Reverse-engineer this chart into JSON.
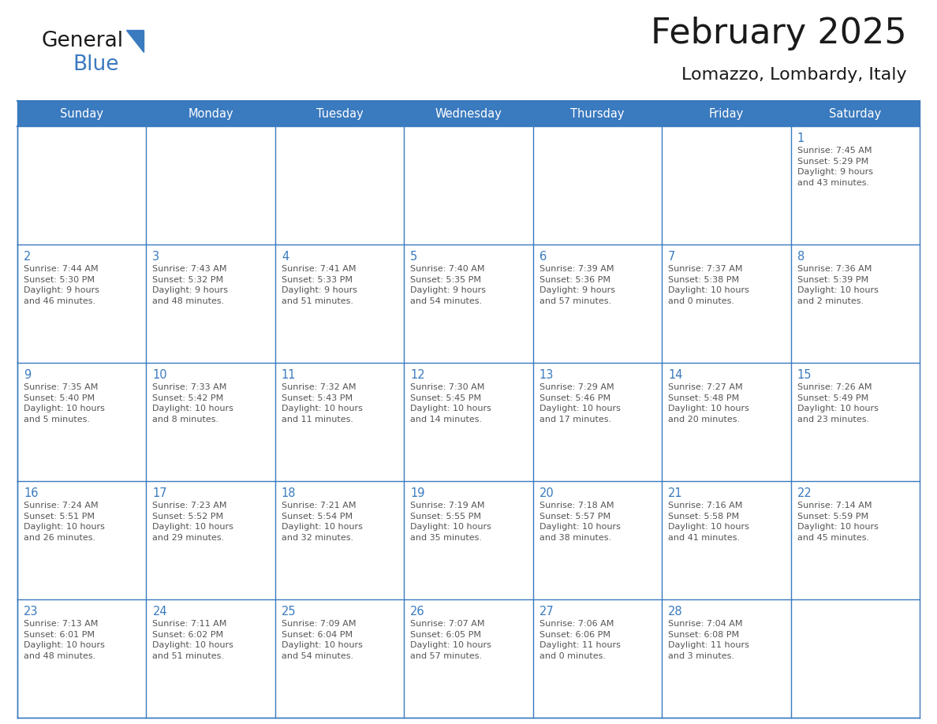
{
  "title": "February 2025",
  "subtitle": "Lomazzo, Lombardy, Italy",
  "header_bg": "#3a7abf",
  "header_text": "#ffffff",
  "cell_bg": "#ffffff",
  "grid_color": "#3a7abf",
  "day_number_color": "#3a7abf",
  "text_color": "#555555",
  "days_of_week": [
    "Sunday",
    "Monday",
    "Tuesday",
    "Wednesday",
    "Thursday",
    "Friday",
    "Saturday"
  ],
  "weeks": [
    [
      {
        "day": null,
        "info": null
      },
      {
        "day": null,
        "info": null
      },
      {
        "day": null,
        "info": null
      },
      {
        "day": null,
        "info": null
      },
      {
        "day": null,
        "info": null
      },
      {
        "day": null,
        "info": null
      },
      {
        "day": 1,
        "info": "Sunrise: 7:45 AM\nSunset: 5:29 PM\nDaylight: 9 hours\nand 43 minutes."
      }
    ],
    [
      {
        "day": 2,
        "info": "Sunrise: 7:44 AM\nSunset: 5:30 PM\nDaylight: 9 hours\nand 46 minutes."
      },
      {
        "day": 3,
        "info": "Sunrise: 7:43 AM\nSunset: 5:32 PM\nDaylight: 9 hours\nand 48 minutes."
      },
      {
        "day": 4,
        "info": "Sunrise: 7:41 AM\nSunset: 5:33 PM\nDaylight: 9 hours\nand 51 minutes."
      },
      {
        "day": 5,
        "info": "Sunrise: 7:40 AM\nSunset: 5:35 PM\nDaylight: 9 hours\nand 54 minutes."
      },
      {
        "day": 6,
        "info": "Sunrise: 7:39 AM\nSunset: 5:36 PM\nDaylight: 9 hours\nand 57 minutes."
      },
      {
        "day": 7,
        "info": "Sunrise: 7:37 AM\nSunset: 5:38 PM\nDaylight: 10 hours\nand 0 minutes."
      },
      {
        "day": 8,
        "info": "Sunrise: 7:36 AM\nSunset: 5:39 PM\nDaylight: 10 hours\nand 2 minutes."
      }
    ],
    [
      {
        "day": 9,
        "info": "Sunrise: 7:35 AM\nSunset: 5:40 PM\nDaylight: 10 hours\nand 5 minutes."
      },
      {
        "day": 10,
        "info": "Sunrise: 7:33 AM\nSunset: 5:42 PM\nDaylight: 10 hours\nand 8 minutes."
      },
      {
        "day": 11,
        "info": "Sunrise: 7:32 AM\nSunset: 5:43 PM\nDaylight: 10 hours\nand 11 minutes."
      },
      {
        "day": 12,
        "info": "Sunrise: 7:30 AM\nSunset: 5:45 PM\nDaylight: 10 hours\nand 14 minutes."
      },
      {
        "day": 13,
        "info": "Sunrise: 7:29 AM\nSunset: 5:46 PM\nDaylight: 10 hours\nand 17 minutes."
      },
      {
        "day": 14,
        "info": "Sunrise: 7:27 AM\nSunset: 5:48 PM\nDaylight: 10 hours\nand 20 minutes."
      },
      {
        "day": 15,
        "info": "Sunrise: 7:26 AM\nSunset: 5:49 PM\nDaylight: 10 hours\nand 23 minutes."
      }
    ],
    [
      {
        "day": 16,
        "info": "Sunrise: 7:24 AM\nSunset: 5:51 PM\nDaylight: 10 hours\nand 26 minutes."
      },
      {
        "day": 17,
        "info": "Sunrise: 7:23 AM\nSunset: 5:52 PM\nDaylight: 10 hours\nand 29 minutes."
      },
      {
        "day": 18,
        "info": "Sunrise: 7:21 AM\nSunset: 5:54 PM\nDaylight: 10 hours\nand 32 minutes."
      },
      {
        "day": 19,
        "info": "Sunrise: 7:19 AM\nSunset: 5:55 PM\nDaylight: 10 hours\nand 35 minutes."
      },
      {
        "day": 20,
        "info": "Sunrise: 7:18 AM\nSunset: 5:57 PM\nDaylight: 10 hours\nand 38 minutes."
      },
      {
        "day": 21,
        "info": "Sunrise: 7:16 AM\nSunset: 5:58 PM\nDaylight: 10 hours\nand 41 minutes."
      },
      {
        "day": 22,
        "info": "Sunrise: 7:14 AM\nSunset: 5:59 PM\nDaylight: 10 hours\nand 45 minutes."
      }
    ],
    [
      {
        "day": 23,
        "info": "Sunrise: 7:13 AM\nSunset: 6:01 PM\nDaylight: 10 hours\nand 48 minutes."
      },
      {
        "day": 24,
        "info": "Sunrise: 7:11 AM\nSunset: 6:02 PM\nDaylight: 10 hours\nand 51 minutes."
      },
      {
        "day": 25,
        "info": "Sunrise: 7:09 AM\nSunset: 6:04 PM\nDaylight: 10 hours\nand 54 minutes."
      },
      {
        "day": 26,
        "info": "Sunrise: 7:07 AM\nSunset: 6:05 PM\nDaylight: 10 hours\nand 57 minutes."
      },
      {
        "day": 27,
        "info": "Sunrise: 7:06 AM\nSunset: 6:06 PM\nDaylight: 11 hours\nand 0 minutes."
      },
      {
        "day": 28,
        "info": "Sunrise: 7:04 AM\nSunset: 6:08 PM\nDaylight: 11 hours\nand 3 minutes."
      },
      {
        "day": null,
        "info": null
      }
    ]
  ],
  "logo_general_color": "#1a1a1a",
  "logo_blue_color": "#3a7abf",
  "header_fontsize": 10.5,
  "day_num_fontsize": 10.5,
  "info_fontsize": 8.0,
  "title_fontsize": 32,
  "subtitle_fontsize": 16
}
